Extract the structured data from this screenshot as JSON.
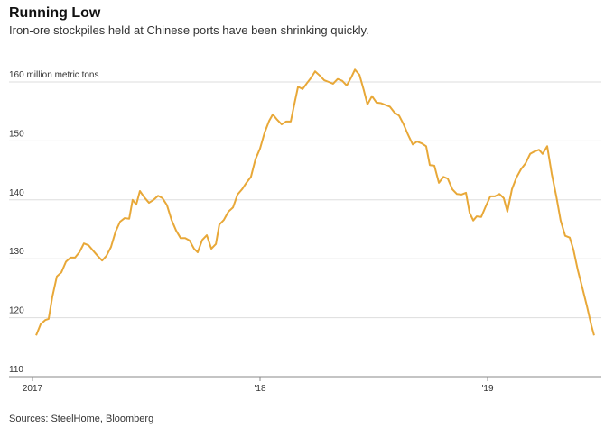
{
  "chart_data": {
    "type": "line",
    "title": "Running Low",
    "subtitle": "Iron-ore stockpiles held at Chinese ports have been shrinking quickly.",
    "source": "Sources: SteelHome, Bloomberg",
    "x": [
      2017.016,
      2017.036,
      2017.056,
      2017.071,
      2017.087,
      2017.107,
      2017.127,
      2017.147,
      2017.167,
      2017.187,
      2017.206,
      2017.226,
      2017.246,
      2017.266,
      2017.286,
      2017.306,
      2017.325,
      2017.345,
      2017.365,
      2017.385,
      2017.405,
      2017.425,
      2017.44,
      2017.456,
      2017.472,
      2017.492,
      2017.512,
      2017.532,
      2017.552,
      2017.571,
      2017.591,
      2017.611,
      2017.631,
      2017.651,
      2017.671,
      2017.69,
      2017.71,
      2017.726,
      2017.746,
      2017.766,
      2017.786,
      2017.806,
      2017.821,
      2017.841,
      2017.861,
      2017.881,
      2017.901,
      2017.921,
      2017.94,
      2017.96,
      2017.98,
      2018.0,
      2018.02,
      2018.04,
      2018.056,
      2018.075,
      2018.095,
      2018.115,
      2018.135,
      2018.151,
      2018.167,
      2018.187,
      2018.206,
      2018.222,
      2018.242,
      2018.262,
      2018.282,
      2018.302,
      2018.321,
      2018.341,
      2018.361,
      2018.381,
      2018.401,
      2018.417,
      2018.437,
      2018.456,
      2018.472,
      2018.492,
      2018.512,
      2018.532,
      2018.552,
      2018.571,
      2018.591,
      2018.611,
      2018.631,
      2018.651,
      2018.671,
      2018.69,
      2018.71,
      2018.73,
      2018.746,
      2018.766,
      2018.786,
      2018.806,
      2018.825,
      2018.845,
      2018.865,
      2018.885,
      2018.905,
      2018.921,
      2018.937,
      2018.952,
      2018.972,
      2018.992,
      2019.012,
      2019.032,
      2019.052,
      2019.071,
      2019.087,
      2019.107,
      2019.127,
      2019.147,
      2019.167,
      2019.187,
      2019.206,
      2019.226,
      2019.242,
      2019.262,
      2019.282,
      2019.302,
      2019.321,
      2019.341,
      2019.361,
      2019.377,
      2019.397,
      2019.417,
      2019.437,
      2019.456,
      2019.468
    ],
    "series": [
      {
        "color": "#e8a838",
        "values": [
          117.0,
          118.9,
          119.6,
          119.8,
          123.5,
          127.0,
          127.7,
          129.5,
          130.2,
          130.2,
          131.1,
          132.6,
          132.3,
          131.4,
          130.5,
          129.7,
          130.5,
          132.0,
          134.6,
          136.3,
          136.9,
          136.8,
          140.0,
          139.2,
          141.5,
          140.4,
          139.5,
          140.0,
          140.7,
          140.3,
          139.1,
          136.6,
          134.8,
          133.5,
          133.5,
          133.1,
          131.7,
          131.1,
          133.2,
          134.0,
          131.7,
          132.5,
          135.8,
          136.6,
          138.0,
          138.7,
          140.9,
          141.8,
          142.9,
          143.9,
          146.9,
          148.7,
          151.4,
          153.4,
          154.5,
          153.6,
          152.8,
          153.3,
          153.3,
          156.3,
          159.2,
          158.8,
          159.8,
          160.6,
          161.8,
          161.1,
          160.3,
          160.0,
          159.7,
          160.5,
          160.2,
          159.4,
          160.8,
          162.1,
          161.2,
          158.6,
          156.2,
          157.6,
          156.5,
          156.4,
          156.1,
          155.8,
          154.8,
          154.3,
          152.8,
          151.0,
          149.4,
          149.9,
          149.6,
          149.1,
          145.9,
          145.8,
          142.9,
          143.9,
          143.6,
          141.8,
          141.0,
          140.9,
          141.2,
          137.8,
          136.5,
          137.2,
          137.1,
          138.9,
          140.6,
          140.6,
          141.0,
          140.3,
          138.0,
          141.8,
          143.8,
          145.2,
          146.2,
          147.8,
          148.2,
          148.5,
          147.8,
          149.1,
          144.4,
          140.6,
          136.5,
          133.9,
          133.6,
          131.6,
          128.0,
          125.0,
          121.9,
          118.7,
          117.0
        ]
      }
    ],
    "xlim": [
      2017,
      2019.5
    ],
    "xticks": [
      {
        "value": 2017,
        "label": "2017"
      },
      {
        "value": 2018,
        "label": "'18"
      },
      {
        "value": 2019,
        "label": "'19"
      }
    ],
    "ylim": [
      110,
      165
    ],
    "yticks": [
      {
        "value": 160,
        "label": "160 million metric tons"
      },
      150,
      140,
      130,
      120,
      110
    ],
    "grid": true
  }
}
